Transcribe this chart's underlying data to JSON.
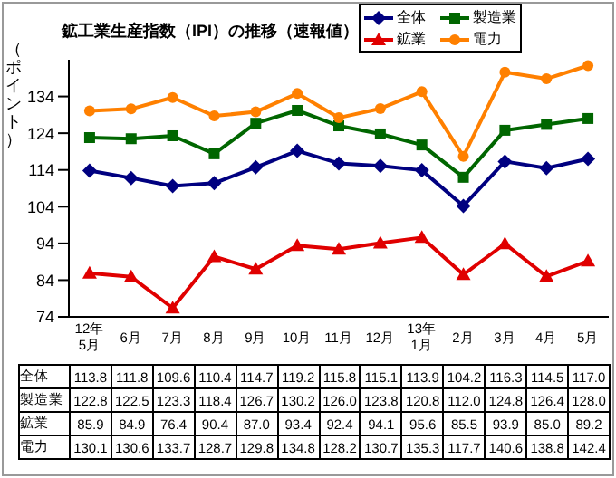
{
  "chart_data": {
    "type": "line",
    "title": "鉱工業生産指数（IPI）の推移（速報値）",
    "ylabel": "（ポイント）",
    "categories": [
      "12年\n5月",
      "6月",
      "7月",
      "8月",
      "9月",
      "10月",
      "11月",
      "12月",
      "13年\n1月",
      "2月",
      "3月",
      "4月",
      "5月"
    ],
    "series": [
      {
        "name": "全体",
        "color": "#000080",
        "marker": "diamond",
        "values": [
          113.8,
          111.8,
          109.6,
          110.4,
          114.7,
          119.2,
          115.8,
          115.1,
          113.9,
          104.2,
          116.3,
          114.5,
          117.0
        ],
        "value_labels": [
          "113.8",
          "111.8",
          "109.6",
          "110.4",
          "114.7",
          "119.2",
          "115.8",
          "115.1",
          "113.9",
          "104.2",
          "116.3",
          "114.5",
          "117.0"
        ]
      },
      {
        "name": "製造業",
        "color": "#006600",
        "marker": "square",
        "values": [
          122.8,
          122.5,
          123.3,
          118.4,
          126.7,
          130.2,
          126.0,
          123.8,
          120.8,
          112.0,
          124.8,
          126.4,
          128.0
        ],
        "value_labels": [
          "122.8",
          "122.5",
          "123.3",
          "118.4",
          "126.7",
          "130.2",
          "126.0",
          "123.8",
          "120.8",
          "112.0",
          "124.8",
          "126.4",
          "128.0"
        ]
      },
      {
        "name": "鉱業",
        "color": "#e00000",
        "marker": "triangle",
        "values": [
          85.9,
          84.9,
          76.4,
          90.4,
          87.0,
          93.4,
          92.4,
          94.1,
          95.6,
          85.5,
          93.9,
          85.0,
          89.2
        ],
        "value_labels": [
          "85.9",
          "84.9",
          "76.4",
          "90.4",
          "87.0",
          "93.4",
          "92.4",
          "94.1",
          "95.6",
          "85.5",
          "93.9",
          "85.0",
          "89.2"
        ]
      },
      {
        "name": "電力",
        "color": "#ff8000",
        "marker": "circle",
        "values": [
          130.1,
          130.6,
          133.7,
          128.7,
          129.8,
          134.8,
          128.2,
          130.7,
          135.3,
          117.7,
          140.6,
          138.8,
          142.4
        ],
        "value_labels": [
          "130.1",
          "130.6",
          "133.7",
          "128.7",
          "129.8",
          "134.8",
          "128.2",
          "130.7",
          "135.3",
          "117.7",
          "140.6",
          "138.8",
          "142.4"
        ]
      }
    ],
    "ylim": [
      74,
      144
    ],
    "yticks": [
      74,
      84,
      94,
      104,
      114,
      124,
      134
    ],
    "grid": false,
    "legend": "top right"
  }
}
